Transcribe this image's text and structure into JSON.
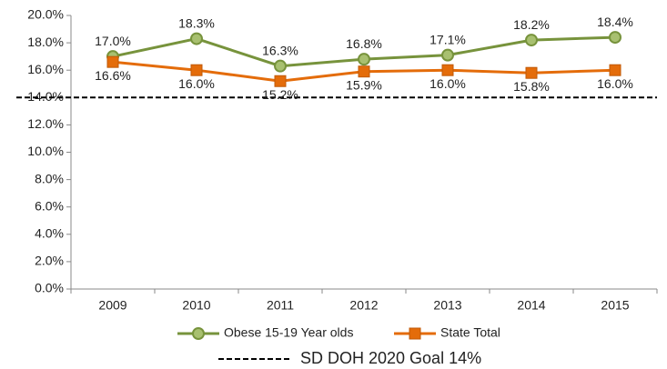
{
  "chart_data": {
    "type": "line",
    "categories": [
      "2009",
      "2010",
      "2011",
      "2012",
      "2013",
      "2014",
      "2015"
    ],
    "series": [
      {
        "name": "Obese 15-19 Year olds",
        "color": "#77933c",
        "marker": "circle",
        "values": [
          17.0,
          18.3,
          16.3,
          16.8,
          17.1,
          18.2,
          18.4
        ],
        "value_labels": [
          "17.0%",
          "18.3%",
          "16.3%",
          "16.8%",
          "17.1%",
          "18.2%",
          "18.4%"
        ]
      },
      {
        "name": "State Total",
        "color": "#e46c0a",
        "marker": "square",
        "values": [
          16.6,
          16.0,
          15.2,
          15.9,
          16.0,
          15.8,
          16.0
        ],
        "value_labels": [
          "16.6%",
          "16.0%",
          "15.2%",
          "15.9%",
          "16.0%",
          "15.8%",
          "16.0%"
        ]
      }
    ],
    "goal": {
      "name": "SD DOH 2020 Goal 14%",
      "value": 14,
      "color": "#000000"
    },
    "ylim": [
      0,
      20
    ],
    "yticks": [
      {
        "value": 0,
        "label": "0.0%"
      },
      {
        "value": 2,
        "label": "2.0%"
      },
      {
        "value": 4,
        "label": "4.0%"
      },
      {
        "value": 6,
        "label": "6.0%"
      },
      {
        "value": 8,
        "label": "8.0%"
      },
      {
        "value": 10,
        "label": "10.0%"
      },
      {
        "value": 12,
        "label": "12.0%"
      },
      {
        "value": 14,
        "label": "14.0%"
      },
      {
        "value": 16,
        "label": "16.0%"
      },
      {
        "value": 18,
        "label": "18.0%"
      },
      {
        "value": 20,
        "label": "20.0%"
      }
    ],
    "grid": false,
    "legend": "bottom"
  }
}
